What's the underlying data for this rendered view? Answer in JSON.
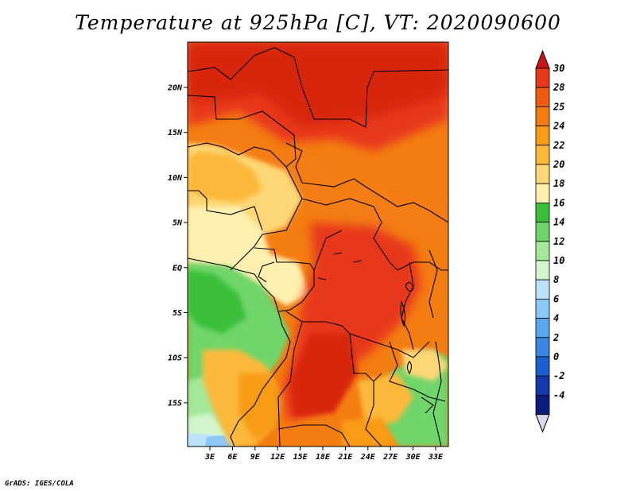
{
  "title": "Temperature at 925hPa [C], VT: 2020090600",
  "credit": "GrADS: IGES/COLA",
  "map": {
    "lat_labels": [
      "20N",
      "15N",
      "10N",
      "5N",
      "EQ",
      "5S",
      "10S",
      "15S"
    ],
    "lon_labels": [
      "3E",
      "6E",
      "9E",
      "12E",
      "15E",
      "18E",
      "21E",
      "24E",
      "27E",
      "30E",
      "33E"
    ]
  },
  "colorbar": {
    "labels": [
      "30",
      "28",
      "25",
      "24",
      "22",
      "20",
      "18",
      "16",
      "14",
      "12",
      "10",
      "8",
      "6",
      "4",
      "2",
      "0",
      "-2",
      "-4"
    ],
    "colors": [
      "#e8391e",
      "#f05a14",
      "#f47d12",
      "#f89c17",
      "#fbb93a",
      "#fdd775",
      "#fff0b0",
      "#3bbf3b",
      "#6fd56a",
      "#a4e89a",
      "#d2f5cd",
      "#bde3fb",
      "#8cc8f5",
      "#5aa8ee",
      "#3a86e2",
      "#1f5ed0",
      "#1239ae",
      "#0b1d7c"
    ],
    "top_arrow_color": "#c8141a",
    "bottom_arrow_color": "#d8d8ec"
  }
}
